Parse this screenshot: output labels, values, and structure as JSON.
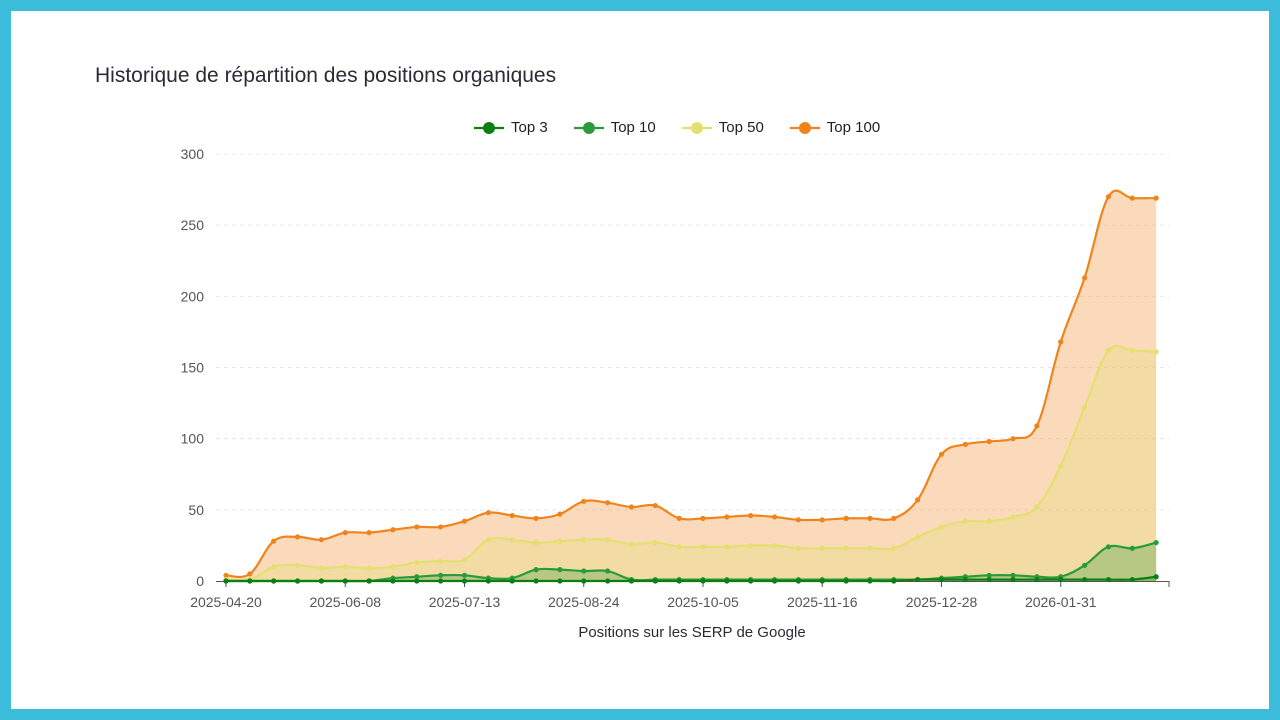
{
  "chart_data": {
    "type": "area",
    "title": "Historique de répartition des positions organiques",
    "xlabel": "Positions sur les SERP de Google",
    "ylabel": "",
    "ylim": [
      0,
      300
    ],
    "y_ticks": [
      "0",
      "50",
      "100",
      "150",
      "200",
      "250",
      "300"
    ],
    "x_tick_labels": [
      {
        "index": 0,
        "label": "2025-04-20"
      },
      {
        "index": 5,
        "label": "2025-06-08"
      },
      {
        "index": 10,
        "label": "2025-07-13"
      },
      {
        "index": 15,
        "label": "2025-08-24"
      },
      {
        "index": 20,
        "label": "2025-10-05"
      },
      {
        "index": 25,
        "label": "2025-11-16"
      },
      {
        "index": 30,
        "label": "2025-12-28"
      },
      {
        "index": 35,
        "label": "2026-01-31"
      }
    ],
    "grid": true,
    "legend_position": "top",
    "series": [
      {
        "name": "Top 3",
        "color": "#0d7f12",
        "values": [
          0,
          0,
          0,
          0,
          0,
          0,
          0,
          0,
          0,
          0,
          0,
          0,
          0,
          0,
          0,
          0,
          0,
          0,
          0,
          0,
          0,
          0,
          0,
          0,
          0,
          0,
          0,
          0,
          0,
          1,
          1,
          1,
          1,
          1,
          1,
          1,
          1,
          1,
          1,
          3
        ]
      },
      {
        "name": "Top 10",
        "color": "#2a9a3c",
        "values": [
          0,
          0,
          0,
          0,
          0,
          0,
          0,
          2,
          3,
          4,
          4,
          2,
          2,
          8,
          8,
          7,
          7,
          1,
          1,
          1,
          1,
          1,
          1,
          1,
          1,
          1,
          1,
          1,
          1,
          1,
          2,
          3,
          4,
          4,
          3,
          3,
          11,
          24,
          23,
          27
        ]
      },
      {
        "name": "Top 50",
        "color": "#e4e070",
        "values": [
          1,
          1,
          10,
          11,
          9,
          10,
          9,
          10,
          13,
          14,
          15,
          29,
          29,
          27,
          28,
          29,
          29,
          26,
          27,
          24,
          24,
          24,
          25,
          25,
          23,
          23,
          23,
          23,
          23,
          31,
          38,
          42,
          42,
          45,
          52,
          81,
          122,
          162,
          162,
          161
        ]
      },
      {
        "name": "Top 100",
        "color": "#f0841c",
        "values": [
          4,
          5,
          28,
          31,
          29,
          34,
          34,
          36,
          38,
          38,
          42,
          48,
          46,
          44,
          47,
          56,
          55,
          52,
          53,
          44,
          44,
          45,
          46,
          45,
          43,
          43,
          44,
          44,
          44,
          57,
          89,
          96,
          98,
          100,
          109,
          168,
          213,
          270,
          269,
          269
        ]
      }
    ]
  }
}
